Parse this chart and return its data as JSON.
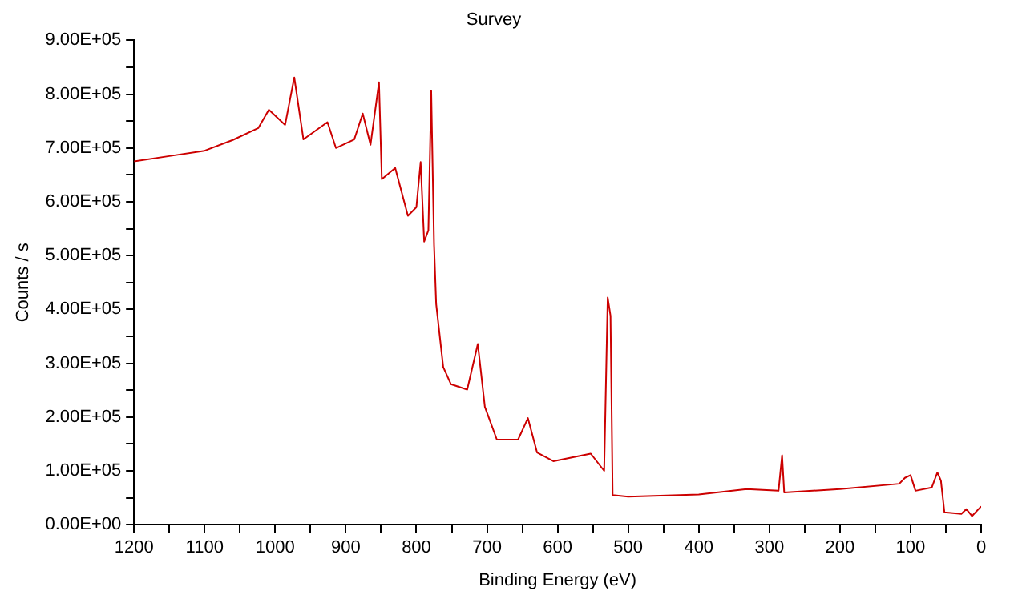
{
  "chart_data": {
    "type": "line",
    "title": "Survey",
    "xlabel": "Binding Energy (eV)",
    "ylabel": "Counts / s",
    "xlim": [
      1200,
      0
    ],
    "xticks": [
      1200,
      {
        "value": 1150,
        "label": null
      },
      1100,
      {
        "value": 1050,
        "label": null
      },
      1000,
      {
        "value": 950,
        "label": null
      },
      900,
      {
        "value": 850,
        "label": null
      },
      800,
      {
        "value": 750,
        "label": null
      },
      700,
      {
        "value": 650,
        "label": null
      },
      600,
      {
        "value": 550,
        "label": null
      },
      500,
      {
        "value": 450,
        "label": null
      },
      400,
      {
        "value": 350,
        "label": null
      },
      300,
      {
        "value": 250,
        "label": null
      },
      200,
      {
        "value": 150,
        "label": null
      },
      100,
      {
        "value": 50,
        "label": null
      },
      0
    ],
    "ylim": [
      0,
      900000
    ],
    "yticks": [
      {
        "value": 0,
        "label": "0.00E+00"
      },
      {
        "value": 50000,
        "label": null
      },
      {
        "value": 100000,
        "label": "1.00E+05"
      },
      {
        "value": 150000,
        "label": null
      },
      {
        "value": 200000,
        "label": "2.00E+05"
      },
      {
        "value": 250000,
        "label": null
      },
      {
        "value": 300000,
        "label": "3.00E+05"
      },
      {
        "value": 350000,
        "label": null
      },
      {
        "value": 400000,
        "label": "4.00E+05"
      },
      {
        "value": 450000,
        "label": null
      },
      {
        "value": 500000,
        "label": "5.00E+05"
      },
      {
        "value": 550000,
        "label": null
      },
      {
        "value": 600000,
        "label": "6.00E+05"
      },
      {
        "value": 650000,
        "label": null
      },
      {
        "value": 700000,
        "label": "7.00E+05"
      },
      {
        "value": 750000,
        "label": null
      },
      {
        "value": 800000,
        "label": "8.00E+05"
      },
      {
        "value": 850000,
        "label": null
      },
      {
        "value": 900000,
        "label": "9.00E+05"
      }
    ],
    "grid": false,
    "legend": false,
    "marker": "none",
    "line_style": "solid",
    "series": [
      {
        "color": "#cc0000",
        "x": [
          1200,
          1150,
          1100,
          1060,
          1024,
          1009,
          986,
          973,
          960,
          926,
          914,
          888,
          876,
          865,
          853,
          849,
          830,
          812,
          800,
          794,
          789,
          783,
          779,
          775,
          772,
          762,
          751,
          728,
          713,
          703,
          686,
          656,
          642,
          629,
          606,
          553,
          534,
          529,
          525,
          522,
          500,
          400,
          332,
          287,
          282,
          279,
          200,
          116,
          108,
          100,
          93,
          70,
          62,
          57,
          52,
          28,
          21,
          13,
          0
        ],
        "values": [
          675000,
          685000,
          695000,
          715000,
          737000,
          771000,
          743000,
          831000,
          716000,
          748000,
          700000,
          716000,
          764000,
          706000,
          822000,
          642000,
          663000,
          574000,
          590000,
          674000,
          526000,
          547000,
          806000,
          520000,
          410000,
          293000,
          261000,
          251000,
          336000,
          219000,
          158000,
          158000,
          198000,
          134000,
          118000,
          132000,
          100000,
          422000,
          388000,
          55000,
          52000,
          56000,
          66000,
          63000,
          129000,
          60000,
          66000,
          76000,
          87000,
          92000,
          63000,
          69000,
          97000,
          82000,
          23000,
          20000,
          29000,
          16000,
          34000
        ]
      }
    ]
  }
}
